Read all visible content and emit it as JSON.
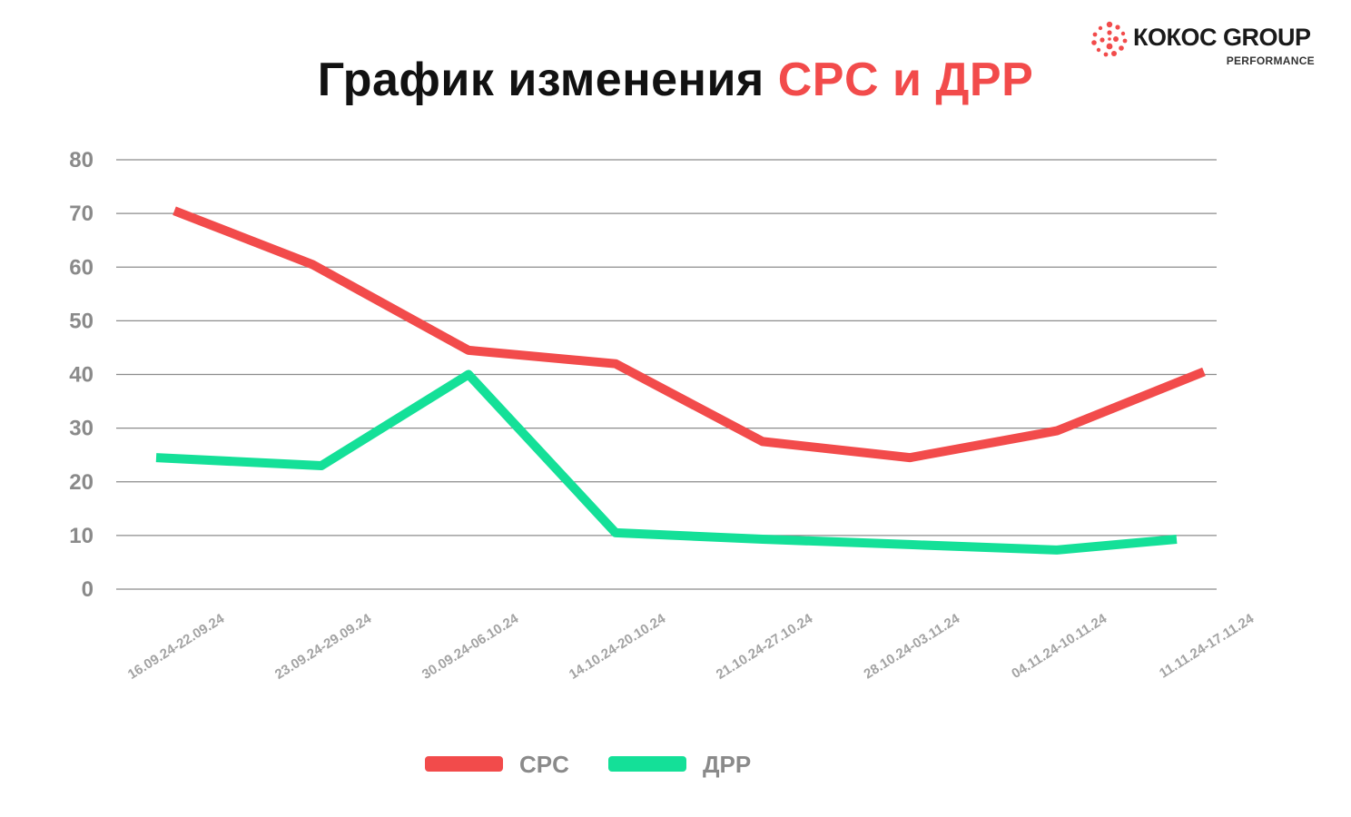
{
  "title": {
    "prefix": "График изменения ",
    "accent": "CPC и ДРР"
  },
  "logo": {
    "brand": "КОКОС GROUP",
    "sub": "PERFORMANCE",
    "icon": "coconut-dots-icon"
  },
  "colors": {
    "cpc": "#f24b4b",
    "drr": "#14e098",
    "grid": "#8c8c8c",
    "accent": "#f24b4b"
  },
  "chart_data": {
    "type": "line",
    "categories": [
      "16.09.24-22.09.24",
      "23.09.24-29.09.24",
      "30.09.24-06.10.24",
      "14.10.24-20.10.24",
      "21.10.24-27.10.24",
      "28.10.24-03.11.24",
      "04.11.24-10.11.24",
      "11.11.24-17.11.24"
    ],
    "series": [
      {
        "name": "CPC",
        "values": [
          70.5,
          60.5,
          44.5,
          42,
          27.5,
          24.5,
          29.5,
          40.5
        ]
      },
      {
        "name": "ДРР",
        "values": [
          24.5,
          23,
          40,
          10.5,
          9.3,
          8.3,
          7.3,
          9.3
        ]
      }
    ],
    "ylim": [
      0,
      80
    ],
    "yticks": [
      0,
      10,
      20,
      30,
      40,
      50,
      60,
      70,
      80
    ],
    "grid": true,
    "legend": "bottom-center"
  }
}
